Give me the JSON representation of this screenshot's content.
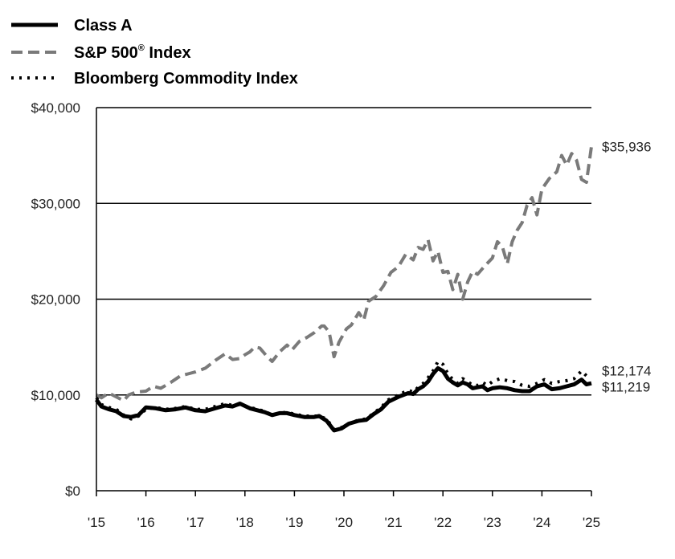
{
  "chart_data": {
    "type": "line",
    "title": "",
    "xlabel": "",
    "ylabel": "",
    "xlim": [
      2015.0,
      2025.0
    ],
    "ylim": [
      0,
      40000
    ],
    "yticks": [
      {
        "value": 0,
        "label": "$0"
      },
      {
        "value": 10000,
        "label": "$10,000"
      },
      {
        "value": 20000,
        "label": "$20,000"
      },
      {
        "value": 30000,
        "label": "$30,000"
      },
      {
        "value": 40000,
        "label": "$40,000"
      }
    ],
    "xticks": [
      {
        "value": 2015,
        "label": "'15"
      },
      {
        "value": 2016,
        "label": "'16"
      },
      {
        "value": 2017,
        "label": "'17"
      },
      {
        "value": 2018,
        "label": "'18"
      },
      {
        "value": 2019,
        "label": "'19"
      },
      {
        "value": 2020,
        "label": "'20"
      },
      {
        "value": 2021,
        "label": "'21"
      },
      {
        "value": 2022,
        "label": "'22"
      },
      {
        "value": 2023,
        "label": "'23"
      },
      {
        "value": 2024,
        "label": "'24"
      },
      {
        "value": 2025,
        "label": "'25"
      }
    ],
    "grid": "horizontal",
    "legend": "top-left",
    "series": [
      {
        "name": "S&P 500",
        "name_mark": "®",
        "name_suffix": " Index",
        "style": "dashed",
        "color": "#7a7a7a",
        "end_label": "$35,936",
        "x": [
          2015.0,
          2015.1,
          2015.25,
          2015.4,
          2015.55,
          2015.65,
          2015.8,
          2016.0,
          2016.15,
          2016.3,
          2016.5,
          2016.7,
          2016.85,
          2017.0,
          2017.2,
          2017.4,
          2017.6,
          2017.75,
          2017.9,
          2018.0,
          2018.1,
          2018.2,
          2018.3,
          2018.45,
          2018.55,
          2018.7,
          2018.85,
          2018.95,
          2019.1,
          2019.25,
          2019.4,
          2019.55,
          2019.6,
          2019.7,
          2019.8,
          2019.9,
          2020.05,
          2020.15,
          2020.3,
          2020.4,
          2020.5,
          2020.65,
          2020.8,
          2020.95,
          2021.1,
          2021.25,
          2021.4,
          2021.5,
          2021.6,
          2021.7,
          2021.8,
          2021.9,
          2022.0,
          2022.1,
          2022.2,
          2022.3,
          2022.4,
          2022.5,
          2022.6,
          2022.7,
          2022.85,
          2023.0,
          2023.1,
          2023.2,
          2023.3,
          2023.4,
          2023.5,
          2023.6,
          2023.7,
          2023.8,
          2023.9,
          2024.0,
          2024.15,
          2024.3,
          2024.4,
          2024.5,
          2024.6,
          2024.7,
          2024.8,
          2024.9,
          2025.0
        ],
        "y": [
          10000,
          9700,
          10200,
          9800,
          9400,
          10000,
          10300,
          10400,
          10900,
          10700,
          11300,
          12000,
          12200,
          12400,
          12800,
          13600,
          14300,
          13700,
          13800,
          14200,
          14500,
          15000,
          14900,
          14000,
          13500,
          14500,
          15200,
          14700,
          15600,
          16000,
          16500,
          17200,
          17200,
          16600,
          14000,
          15500,
          16900,
          17300,
          18600,
          17800,
          19800,
          20300,
          21400,
          22800,
          23400,
          24700,
          24100,
          25400,
          25200,
          26200,
          24000,
          25000,
          22800,
          22900,
          21000,
          22600,
          20000,
          21800,
          22900,
          22600,
          23500,
          24300,
          26000,
          25500,
          23700,
          26000,
          27200,
          28000,
          29800,
          30600,
          28800,
          31500,
          32600,
          33300,
          35000,
          34000,
          35200,
          34500,
          32500,
          32200,
          35936
        ]
      },
      {
        "name": "Bloomberg Commodity Index",
        "style": "dotted",
        "color": "#000000",
        "end_label": "$12,174",
        "x": [
          2015.0,
          2015.1,
          2015.25,
          2015.4,
          2015.55,
          2015.7,
          2015.85,
          2016.0,
          2016.2,
          2016.4,
          2016.6,
          2016.8,
          2017.0,
          2017.2,
          2017.4,
          2017.6,
          2017.75,
          2017.9,
          2018.1,
          2018.25,
          2018.4,
          2018.55,
          2018.7,
          2018.85,
          2019.0,
          2019.2,
          2019.4,
          2019.5,
          2019.65,
          2019.8,
          2019.95,
          2020.1,
          2020.3,
          2020.45,
          2020.6,
          2020.75,
          2020.9,
          2021.1,
          2021.3,
          2021.4,
          2021.5,
          2021.6,
          2021.7,
          2021.8,
          2021.9,
          2022.0,
          2022.1,
          2022.2,
          2022.3,
          2022.4,
          2022.5,
          2022.6,
          2022.7,
          2022.8,
          2022.9,
          2023.0,
          2023.15,
          2023.3,
          2023.45,
          2023.6,
          2023.75,
          2023.9,
          2024.05,
          2024.2,
          2024.35,
          2024.5,
          2024.65,
          2024.8,
          2024.9,
          2025.0
        ],
        "y": [
          9700,
          9000,
          8700,
          8500,
          7900,
          7500,
          7800,
          8500,
          8700,
          8500,
          8600,
          8800,
          8500,
          8500,
          8800,
          9100,
          8900,
          9000,
          8700,
          8500,
          8300,
          7900,
          8100,
          8200,
          8000,
          7800,
          7800,
          7800,
          7500,
          6400,
          6600,
          7000,
          7400,
          7500,
          8100,
          8700,
          9500,
          10000,
          10500,
          10300,
          10800,
          11200,
          11800,
          12500,
          13500,
          13200,
          12200,
          11600,
          11200,
          11700,
          11400,
          11000,
          11000,
          11300,
          11000,
          11400,
          11700,
          11500,
          11400,
          11000,
          10900,
          11200,
          11600,
          11200,
          11400,
          11500,
          11700,
          12500,
          12000,
          12174
        ]
      },
      {
        "name": "Class A",
        "style": "solid",
        "color": "#000000",
        "end_label": "$11,219",
        "x": [
          2015.0,
          2015.1,
          2015.25,
          2015.4,
          2015.55,
          2015.7,
          2015.85,
          2016.0,
          2016.2,
          2016.4,
          2016.6,
          2016.8,
          2017.0,
          2017.2,
          2017.4,
          2017.6,
          2017.75,
          2017.9,
          2018.1,
          2018.25,
          2018.4,
          2018.55,
          2018.7,
          2018.85,
          2019.0,
          2019.2,
          2019.4,
          2019.5,
          2019.65,
          2019.8,
          2019.95,
          2020.1,
          2020.3,
          2020.45,
          2020.6,
          2020.75,
          2020.9,
          2021.1,
          2021.3,
          2021.4,
          2021.5,
          2021.6,
          2021.7,
          2021.8,
          2021.9,
          2022.0,
          2022.1,
          2022.2,
          2022.3,
          2022.4,
          2022.5,
          2022.6,
          2022.7,
          2022.8,
          2022.9,
          2023.0,
          2023.15,
          2023.3,
          2023.45,
          2023.6,
          2023.75,
          2023.9,
          2024.05,
          2024.2,
          2024.35,
          2024.5,
          2024.65,
          2024.8,
          2024.9,
          2025.0
        ],
        "y": [
          9500,
          8800,
          8500,
          8300,
          7800,
          7700,
          7900,
          8700,
          8600,
          8400,
          8500,
          8700,
          8400,
          8300,
          8600,
          8900,
          8800,
          9100,
          8600,
          8400,
          8200,
          7900,
          8100,
          8100,
          7900,
          7700,
          7700,
          7800,
          7300,
          6300,
          6500,
          7000,
          7300,
          7400,
          8000,
          8500,
          9300,
          9800,
          10200,
          10100,
          10600,
          10900,
          11400,
          12200,
          12800,
          12500,
          11700,
          11300,
          11000,
          11300,
          11100,
          10700,
          10800,
          10900,
          10500,
          10700,
          10800,
          10700,
          10500,
          10400,
          10400,
          10900,
          11100,
          10600,
          10700,
          10900,
          11100,
          11600,
          11100,
          11219
        ]
      }
    ]
  }
}
